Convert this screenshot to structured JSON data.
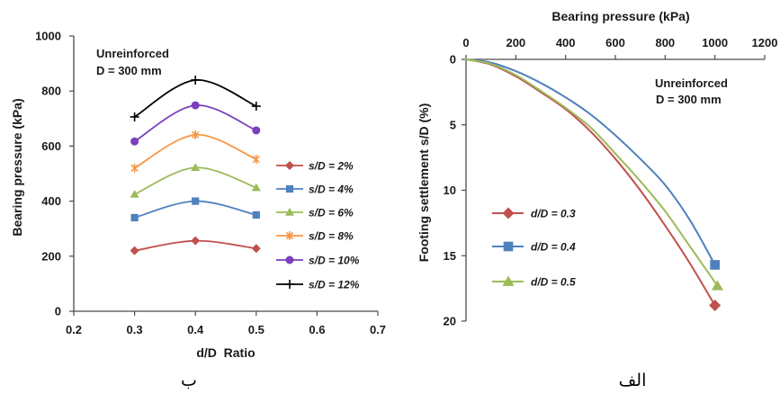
{
  "chart_data": [
    {
      "type": "line",
      "panel_label": "ب",
      "annotation": [
        "Unreinforced",
        "D = 300 mm"
      ],
      "xlabel": "d/D  Ratio",
      "ylabel": "Bearing pressure (kPa)",
      "xlim": [
        0.2,
        0.7
      ],
      "ylim": [
        0,
        1000
      ],
      "xticks": [
        "0.2",
        "0.3",
        "0.4",
        "0.5",
        "0.6",
        "0.7"
      ],
      "yticks": [
        "0",
        "200",
        "400",
        "600",
        "800",
        "1000"
      ],
      "x_axis_top": false,
      "y_inverted": false,
      "grid": false,
      "smooth": true,
      "markers_at_every_point": true,
      "legend_position": "right",
      "x": [
        0.3,
        0.4,
        0.5
      ],
      "series": [
        {
          "name": "s/D = 2%",
          "values": [
            220,
            256,
            228
          ],
          "color": "#c0504d",
          "marker": "diamond"
        },
        {
          "name": "s/D = 4%",
          "values": [
            340,
            400,
            350
          ],
          "color": "#4f81bd",
          "marker": "square"
        },
        {
          "name": "s/D = 6%",
          "values": [
            425,
            522,
            449
          ],
          "color": "#9bbb59",
          "marker": "triangle"
        },
        {
          "name": "s/D = 8%",
          "values": [
            520,
            641,
            552
          ],
          "color": "#f79646",
          "marker": "asterisk"
        },
        {
          "name": "s/D = 10%",
          "values": [
            617,
            748,
            657
          ],
          "color": "#7b3fbe",
          "marker": "circle"
        },
        {
          "name": "s/D = 12%",
          "values": [
            706,
            840,
            745
          ],
          "color": "#000000",
          "marker": "plus"
        }
      ]
    },
    {
      "type": "line",
      "panel_label": "الف",
      "annotation": [
        "Unreinforced",
        "D = 300 mm"
      ],
      "xlabel": "Bearing pressure (kPa)",
      "ylabel": "Footing settlement s/D (%)",
      "xlim": [
        0,
        1200
      ],
      "ylim": [
        0,
        20
      ],
      "xticks": [
        "0",
        "200",
        "400",
        "600",
        "800",
        "1000",
        "1200"
      ],
      "yticks": [
        "0",
        "5",
        "10",
        "15",
        "20"
      ],
      "x_axis_top": true,
      "y_inverted": true,
      "grid": false,
      "smooth": true,
      "markers_at_every_point": false,
      "legend_position": "bottom-left",
      "series": [
        {
          "name": "d/D = 0.3",
          "x": [
            0,
            100,
            200,
            300,
            400,
            500,
            600,
            700,
            800,
            900,
            1000
          ],
          "y": [
            0,
            0.4,
            1.3,
            2.5,
            3.8,
            5.5,
            7.6,
            10.0,
            12.7,
            15.6,
            18.8
          ],
          "color": "#c0504d",
          "marker": "diamond"
        },
        {
          "name": "d/D = 0.4",
          "x": [
            0,
            100,
            200,
            300,
            400,
            500,
            600,
            700,
            800,
            900,
            1000
          ],
          "y": [
            0,
            0.25,
            0.9,
            1.8,
            2.9,
            4.2,
            5.8,
            7.6,
            9.6,
            12.3,
            15.7
          ],
          "color": "#4f81bd",
          "marker": "square"
        },
        {
          "name": "d/D = 0.5",
          "x": [
            0,
            100,
            200,
            300,
            400,
            500,
            600,
            700,
            800,
            900,
            1010
          ],
          "y": [
            0,
            0.35,
            1.2,
            2.4,
            3.7,
            5.2,
            7.2,
            9.3,
            11.6,
            14.3,
            17.3
          ],
          "color": "#9bbb59",
          "marker": "triangle"
        }
      ]
    }
  ]
}
